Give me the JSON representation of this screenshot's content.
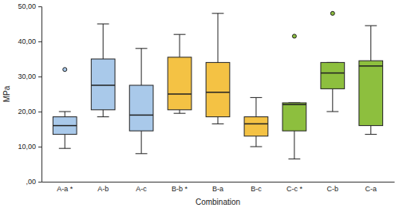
{
  "chart_data": {
    "type": "box",
    "x_label": "Combination",
    "y_label": "MPa",
    "categories": [
      "A-a *",
      "A-b",
      "A-c",
      "B-b *",
      "B-a",
      "B-c",
      "C-c *",
      "C-b",
      "C-a"
    ],
    "whisker_low": [
      9.5,
      18.5,
      8,
      19.5,
      16.5,
      10,
      6.5,
      20,
      13.5
    ],
    "q1": [
      13.5,
      20.5,
      14.5,
      20.5,
      18.5,
      13,
      14.5,
      26.5,
      16
    ],
    "median": [
      16,
      27.5,
      19,
      25,
      25.5,
      16.5,
      22,
      31,
      33
    ],
    "q3": [
      18.5,
      35,
      27.5,
      35.5,
      34,
      18.5,
      22.5,
      34,
      34.5
    ],
    "whisker_high": [
      20,
      45,
      38,
      42,
      48,
      24,
      22.5,
      34,
      44.5
    ],
    "outliers": [
      [
        32
      ],
      [],
      [],
      [],
      [],
      [],
      [
        41.5
      ],
      [
        48
      ],
      []
    ],
    "colors": [
      "#a9c9ea",
      "#a9c9ea",
      "#a9c9ea",
      "#f4c244",
      "#f4c244",
      "#f4c244",
      "#8dbf3e",
      "#8dbf3e",
      "#8dbf3e"
    ],
    "ylim": [
      0,
      50
    ],
    "yticks": [
      {
        "value": 0,
        "label": ",00"
      },
      {
        "value": 10,
        "label": "10,00"
      },
      {
        "value": 20,
        "label": "20,00"
      },
      {
        "value": 30,
        "label": "30,00"
      },
      {
        "value": 40,
        "label": "40,00"
      },
      {
        "value": 50,
        "label": "50,00"
      }
    ],
    "grid": false
  }
}
